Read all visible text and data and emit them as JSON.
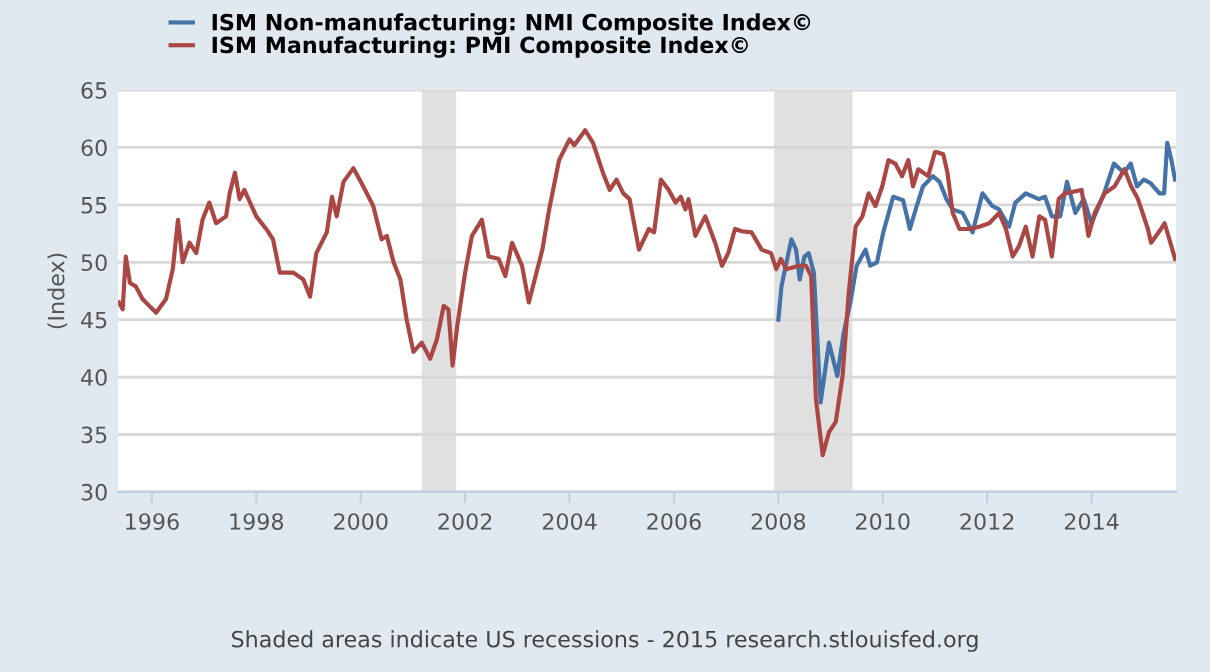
{
  "chart_data": {
    "type": "line",
    "ylabel": "(Index)",
    "xlim": [
      1995.35,
      2015.62
    ],
    "ylim": [
      30,
      65
    ],
    "xticks": [
      1996,
      1998,
      2000,
      2002,
      2004,
      2006,
      2008,
      2010,
      2012,
      2014
    ],
    "yticks": [
      30,
      35,
      40,
      45,
      50,
      55,
      60,
      65
    ],
    "grid": "y",
    "legend": "top left",
    "bands": [
      {
        "axis": "x",
        "from": 2001.17,
        "to": 2001.83,
        "color": "#e0e0e0"
      },
      {
        "axis": "x",
        "from": 2007.92,
        "to": 2009.42,
        "color": "#e0e0e0"
      }
    ],
    "annotations": [
      "Shaded areas indicate US recessions - 2015 research.stlouisfed.org"
    ],
    "series": [
      {
        "name": "ISM Non-manufacturing: NMI Composite Index©",
        "color": "#4572a7",
        "x": [
          2008.0,
          2008.06,
          2008.25,
          2008.34,
          2008.41,
          2008.5,
          2008.58,
          2008.68,
          2008.81,
          2008.97,
          2009.13,
          2009.25,
          2009.38,
          2009.5,
          2009.67,
          2009.76,
          2009.89,
          2010.01,
          2010.2,
          2010.39,
          2010.52,
          2010.65,
          2010.77,
          2010.96,
          2011.09,
          2011.22,
          2011.34,
          2011.53,
          2011.72,
          2011.91,
          2012.1,
          2012.23,
          2012.42,
          2012.54,
          2012.74,
          2012.99,
          2013.11,
          2013.24,
          2013.4,
          2013.53,
          2013.69,
          2013.85,
          2014.0,
          2014.11,
          2014.24,
          2014.43,
          2014.62,
          2014.75,
          2014.87,
          2015.0,
          2015.13,
          2015.3,
          2015.39,
          2015.45,
          2015.53,
          2015.6
        ],
        "values": [
          45.0,
          47.9,
          52.0,
          51.1,
          48.5,
          50.5,
          50.8,
          49.1,
          37.8,
          43.0,
          40.1,
          43.8,
          46.5,
          49.7,
          51.1,
          49.7,
          50.0,
          52.6,
          55.7,
          55.4,
          52.9,
          54.9,
          56.6,
          57.5,
          57.0,
          55.5,
          54.6,
          54.3,
          52.6,
          56.0,
          54.9,
          54.6,
          53.1,
          55.2,
          56.0,
          55.5,
          55.7,
          54.0,
          54.0,
          57.0,
          54.3,
          55.5,
          53.4,
          54.6,
          56.0,
          58.6,
          57.8,
          58.6,
          56.6,
          57.2,
          56.9,
          56.0,
          56.0,
          60.4,
          58.9,
          57.2
        ]
      },
      {
        "name": "ISM Manufacturing: PMI Composite Index©",
        "color": "#aa4643",
        "x": [
          1995.37,
          1995.44,
          1995.5,
          1995.58,
          1995.69,
          1995.82,
          1995.95,
          1996.08,
          1996.27,
          1996.4,
          1996.5,
          1996.59,
          1996.72,
          1996.85,
          1996.97,
          1997.1,
          1997.23,
          1997.42,
          1997.49,
          1997.59,
          1997.68,
          1997.77,
          1998.0,
          1998.19,
          1998.32,
          1998.45,
          1998.71,
          1998.9,
          1999.03,
          1999.15,
          1999.35,
          1999.45,
          1999.54,
          1999.67,
          1999.86,
          2000.05,
          2000.24,
          2000.4,
          2000.5,
          2000.63,
          2000.76,
          2000.88,
          2001.01,
          2001.17,
          2001.33,
          2001.46,
          2001.59,
          2001.68,
          2001.76,
          2001.85,
          2002.0,
          2002.13,
          2002.32,
          2002.45,
          2002.64,
          2002.77,
          2002.9,
          2003.09,
          2003.22,
          2003.35,
          2003.48,
          2003.61,
          2003.8,
          2004.0,
          2004.09,
          2004.3,
          2004.45,
          2004.64,
          2004.77,
          2004.9,
          2005.03,
          2005.15,
          2005.33,
          2005.52,
          2005.62,
          2005.75,
          2005.9,
          2006.03,
          2006.13,
          2006.22,
          2006.28,
          2006.41,
          2006.6,
          2006.79,
          2006.92,
          2007.04,
          2007.17,
          2007.3,
          2007.49,
          2007.68,
          2007.86,
          2007.96,
          2008.05,
          2008.15,
          2008.4,
          2008.53,
          2008.63,
          2008.72,
          2008.85,
          2008.97,
          2009.1,
          2009.23,
          2009.35,
          2009.48,
          2009.61,
          2009.73,
          2009.86,
          2009.99,
          2010.11,
          2010.24,
          2010.37,
          2010.49,
          2010.58,
          2010.68,
          2010.87,
          2011.0,
          2011.03,
          2011.16,
          2011.24,
          2011.34,
          2011.47,
          2011.66,
          2011.85,
          2012.04,
          2012.23,
          2012.36,
          2012.49,
          2012.61,
          2012.74,
          2012.87,
          2013.0,
          2013.11,
          2013.24,
          2013.37,
          2013.49,
          2013.81,
          2013.94,
          2014.06,
          2014.25,
          2014.44,
          2014.63,
          2014.76,
          2014.89,
          2015.08,
          2015.14,
          2015.33,
          2015.4,
          2015.6
        ],
        "values": [
          46.5,
          45.9,
          50.5,
          48.2,
          47.9,
          46.8,
          46.2,
          45.6,
          46.8,
          49.4,
          53.7,
          50.0,
          51.7,
          50.8,
          53.7,
          55.2,
          53.4,
          54.0,
          56.0,
          57.8,
          55.5,
          56.3,
          54.0,
          52.9,
          52.0,
          49.1,
          49.1,
          48.5,
          47.0,
          50.8,
          52.6,
          55.7,
          54.0,
          57.0,
          58.2,
          56.6,
          54.9,
          52.0,
          52.3,
          50.0,
          48.5,
          45.0,
          42.2,
          43.0,
          41.6,
          43.3,
          46.2,
          45.9,
          41.0,
          44.5,
          49.1,
          52.3,
          53.7,
          50.5,
          50.3,
          48.8,
          51.7,
          49.7,
          46.5,
          48.8,
          51.1,
          54.6,
          58.9,
          60.7,
          60.2,
          61.5,
          60.4,
          57.8,
          56.3,
          57.2,
          56.0,
          55.5,
          51.1,
          52.9,
          52.6,
          57.2,
          56.3,
          55.2,
          55.7,
          54.6,
          55.5,
          52.3,
          54.0,
          51.7,
          49.7,
          50.8,
          52.9,
          52.7,
          52.6,
          51.1,
          50.8,
          49.4,
          50.3,
          49.4,
          49.7,
          49.7,
          48.8,
          38.1,
          33.2,
          35.2,
          36.1,
          40.1,
          47.4,
          53.1,
          54.0,
          56.0,
          54.9,
          56.6,
          58.9,
          58.6,
          57.5,
          58.9,
          56.6,
          58.1,
          57.5,
          59.6,
          59.6,
          59.4,
          57.8,
          54.3,
          52.9,
          52.9,
          53.1,
          53.4,
          54.3,
          52.9,
          50.5,
          51.4,
          53.1,
          50.5,
          54.0,
          53.7,
          50.5,
          55.5,
          56.0,
          56.3,
          52.3,
          54.3,
          56.0,
          56.6,
          58.1,
          56.6,
          55.5,
          52.9,
          51.7,
          52.9,
          53.4,
          50.3
        ]
      }
    ]
  }
}
